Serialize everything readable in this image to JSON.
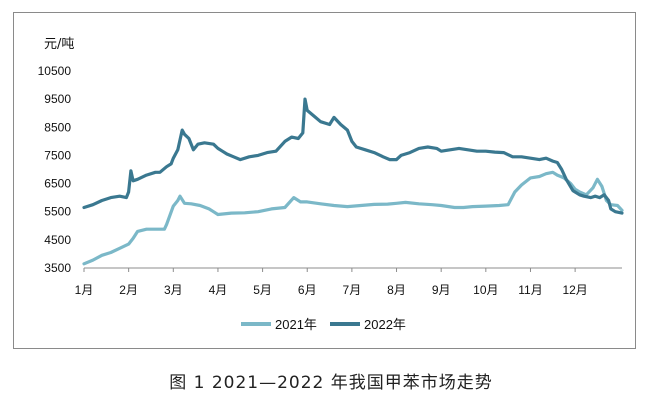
{
  "figure": {
    "caption": "图 1  2021—2022 年我国甲苯市场走势"
  },
  "chart_data": {
    "type": "line",
    "ylabel": "元/吨",
    "ylim": [
      3500,
      10500
    ],
    "yticks": [
      3500,
      4500,
      5500,
      6500,
      7500,
      8500,
      9500,
      10500
    ],
    "x_tick_labels": [
      "1月",
      "2月",
      "3月",
      "4月",
      "5月",
      "6月",
      "7月",
      "8月",
      "9月",
      "10月",
      "11月",
      "12月"
    ],
    "xlim": [
      1,
      13.05
    ],
    "grid": false,
    "legend_position": "bottom-center",
    "series": [
      {
        "name": "2021年",
        "color": "#7bb8c8",
        "points": [
          [
            1.0,
            3650
          ],
          [
            1.2,
            3780
          ],
          [
            1.4,
            3950
          ],
          [
            1.6,
            4050
          ],
          [
            1.8,
            4200
          ],
          [
            2.0,
            4350
          ],
          [
            2.1,
            4550
          ],
          [
            2.2,
            4800
          ],
          [
            2.4,
            4880
          ],
          [
            2.6,
            4880
          ],
          [
            2.8,
            4880
          ],
          [
            2.85,
            5050
          ],
          [
            3.0,
            5700
          ],
          [
            3.1,
            5900
          ],
          [
            3.15,
            6050
          ],
          [
            3.25,
            5800
          ],
          [
            3.4,
            5780
          ],
          [
            3.6,
            5720
          ],
          [
            3.8,
            5600
          ],
          [
            3.9,
            5500
          ],
          [
            4.0,
            5400
          ],
          [
            4.3,
            5450
          ],
          [
            4.6,
            5460
          ],
          [
            4.9,
            5500
          ],
          [
            5.2,
            5600
          ],
          [
            5.5,
            5650
          ],
          [
            5.7,
            6000
          ],
          [
            5.85,
            5850
          ],
          [
            6.0,
            5850
          ],
          [
            6.3,
            5780
          ],
          [
            6.6,
            5720
          ],
          [
            6.9,
            5680
          ],
          [
            7.2,
            5720
          ],
          [
            7.5,
            5760
          ],
          [
            7.8,
            5770
          ],
          [
            8.0,
            5800
          ],
          [
            8.2,
            5830
          ],
          [
            8.5,
            5780
          ],
          [
            8.8,
            5750
          ],
          [
            9.0,
            5720
          ],
          [
            9.3,
            5650
          ],
          [
            9.5,
            5650
          ],
          [
            9.7,
            5680
          ],
          [
            10.0,
            5700
          ],
          [
            10.3,
            5720
          ],
          [
            10.5,
            5750
          ],
          [
            10.65,
            6200
          ],
          [
            10.8,
            6450
          ],
          [
            11.0,
            6700
          ],
          [
            11.2,
            6750
          ],
          [
            11.35,
            6850
          ],
          [
            11.5,
            6900
          ],
          [
            11.6,
            6800
          ],
          [
            11.75,
            6700
          ],
          [
            11.9,
            6500
          ],
          [
            12.0,
            6300
          ],
          [
            12.1,
            6200
          ],
          [
            12.25,
            6100
          ],
          [
            12.4,
            6350
          ],
          [
            12.5,
            6650
          ],
          [
            12.6,
            6400
          ],
          [
            12.7,
            5900
          ],
          [
            12.8,
            5750
          ],
          [
            12.95,
            5720
          ],
          [
            13.05,
            5550
          ]
        ]
      },
      {
        "name": "2022年",
        "color": "#3a7890",
        "points": [
          [
            1.0,
            5650
          ],
          [
            1.2,
            5750
          ],
          [
            1.4,
            5900
          ],
          [
            1.6,
            6000
          ],
          [
            1.8,
            6050
          ],
          [
            1.95,
            6000
          ],
          [
            2.0,
            6200
          ],
          [
            2.05,
            6950
          ],
          [
            2.1,
            6600
          ],
          [
            2.2,
            6650
          ],
          [
            2.4,
            6800
          ],
          [
            2.6,
            6900
          ],
          [
            2.7,
            6900
          ],
          [
            2.85,
            7100
          ],
          [
            2.95,
            7200
          ],
          [
            3.0,
            7400
          ],
          [
            3.1,
            7700
          ],
          [
            3.2,
            8400
          ],
          [
            3.25,
            8250
          ],
          [
            3.35,
            8100
          ],
          [
            3.45,
            7700
          ],
          [
            3.55,
            7900
          ],
          [
            3.7,
            7950
          ],
          [
            3.9,
            7900
          ],
          [
            4.0,
            7750
          ],
          [
            4.1,
            7650
          ],
          [
            4.2,
            7550
          ],
          [
            4.35,
            7450
          ],
          [
            4.5,
            7350
          ],
          [
            4.7,
            7450
          ],
          [
            4.9,
            7500
          ],
          [
            5.1,
            7600
          ],
          [
            5.3,
            7650
          ],
          [
            5.5,
            8000
          ],
          [
            5.65,
            8150
          ],
          [
            5.8,
            8100
          ],
          [
            5.9,
            8300
          ],
          [
            5.95,
            9500
          ],
          [
            6.0,
            9100
          ],
          [
            6.15,
            8900
          ],
          [
            6.3,
            8700
          ],
          [
            6.5,
            8600
          ],
          [
            6.6,
            8850
          ],
          [
            6.75,
            8600
          ],
          [
            6.9,
            8400
          ],
          [
            7.0,
            8000
          ],
          [
            7.1,
            7800
          ],
          [
            7.3,
            7700
          ],
          [
            7.5,
            7600
          ],
          [
            7.7,
            7450
          ],
          [
            7.85,
            7350
          ],
          [
            8.0,
            7350
          ],
          [
            8.1,
            7500
          ],
          [
            8.3,
            7600
          ],
          [
            8.5,
            7750
          ],
          [
            8.7,
            7800
          ],
          [
            8.9,
            7750
          ],
          [
            9.0,
            7650
          ],
          [
            9.2,
            7700
          ],
          [
            9.4,
            7750
          ],
          [
            9.6,
            7700
          ],
          [
            9.8,
            7650
          ],
          [
            10.0,
            7650
          ],
          [
            10.2,
            7620
          ],
          [
            10.4,
            7600
          ],
          [
            10.6,
            7450
          ],
          [
            10.8,
            7450
          ],
          [
            11.0,
            7400
          ],
          [
            11.2,
            7350
          ],
          [
            11.35,
            7400
          ],
          [
            11.5,
            7300
          ],
          [
            11.6,
            7250
          ],
          [
            11.7,
            7000
          ],
          [
            11.8,
            6650
          ],
          [
            11.95,
            6250
          ],
          [
            12.1,
            6100
          ],
          [
            12.2,
            6050
          ],
          [
            12.35,
            6000
          ],
          [
            12.45,
            6050
          ],
          [
            12.55,
            6000
          ],
          [
            12.65,
            6100
          ],
          [
            12.75,
            5900
          ],
          [
            12.8,
            5600
          ],
          [
            12.9,
            5500
          ],
          [
            13.05,
            5450
          ]
        ]
      }
    ]
  }
}
